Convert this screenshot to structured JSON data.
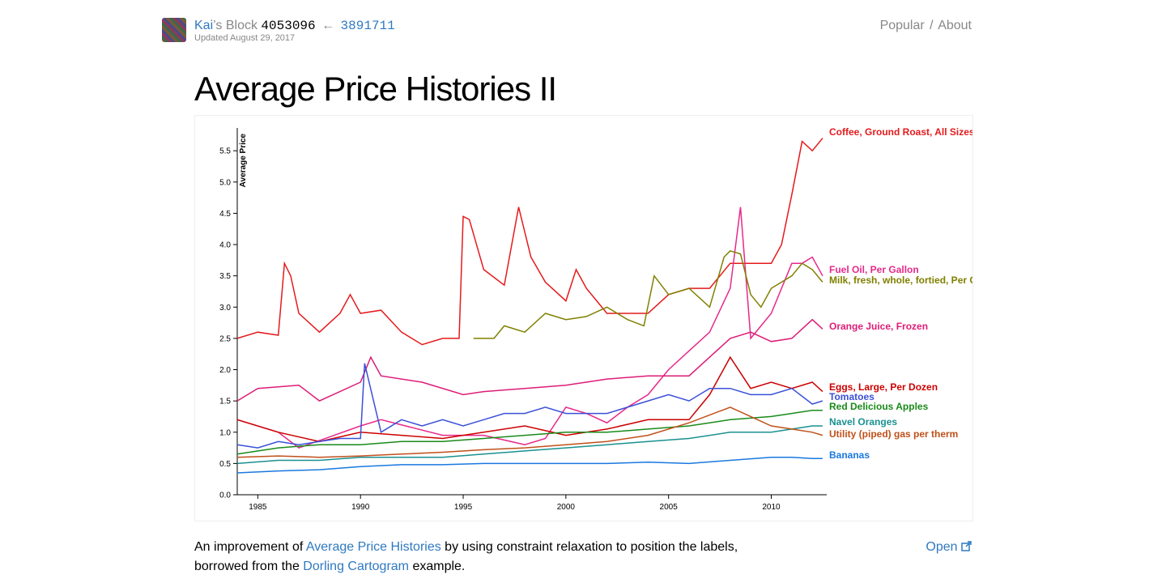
{
  "header": {
    "user": "Kai",
    "suffix": "’s Block",
    "block_id": "4053096",
    "arrow": "←",
    "parent_id": "3891711",
    "updated": "Updated August 29, 2017",
    "nav_popular": "Popular",
    "nav_sep": "/",
    "nav_about": "About"
  },
  "page_title": "Average Price Histories II",
  "description": {
    "part1": "An improvement of ",
    "link1": "Average Price Histories",
    "part2": " by using constraint relaxation to position the labels, borrowed from the ",
    "link2": "Dorling Cartogram",
    "part3": " example.",
    "open_label": "Open"
  },
  "chart_data": {
    "type": "line",
    "title": "",
    "xlabel": "",
    "ylabel": "Average Price",
    "xlim": [
      1984,
      2012.7
    ],
    "ylim": [
      0,
      5.8
    ],
    "x_ticks": [
      1985,
      1990,
      1995,
      2000,
      2005,
      2010
    ],
    "y_ticks": [
      0.0,
      0.5,
      1.0,
      1.5,
      2.0,
      2.5,
      3.0,
      3.5,
      4.0,
      4.5,
      5.0,
      5.5
    ],
    "grid": false,
    "legend": "labels at line ends (right)",
    "series": [
      {
        "name": "Coffee, Ground Roast, All Sizes",
        "color": "#e41a1c",
        "label_value": 5.7,
        "x": [
          1984,
          1985,
          1986,
          1986.3,
          1986.6,
          1987,
          1988,
          1989,
          1989.5,
          1990,
          1991,
          1992,
          1993,
          1994,
          1994.8,
          1995,
          1995.3,
          1996,
          1997,
          1997.7,
          1998.3,
          1999,
          2000,
          2000.5,
          2001,
          2002,
          2003,
          2004,
          2005,
          2006,
          2007,
          2008,
          2009,
          2010,
          2010.5,
          2011,
          2011.5,
          2012,
          2012.5
        ],
        "y": [
          2.5,
          2.6,
          2.55,
          3.7,
          3.5,
          2.9,
          2.6,
          2.9,
          3.2,
          2.9,
          2.95,
          2.6,
          2.4,
          2.5,
          2.5,
          4.45,
          4.4,
          3.6,
          3.35,
          4.6,
          3.8,
          3.4,
          3.1,
          3.6,
          3.3,
          2.9,
          2.9,
          2.9,
          3.2,
          3.3,
          3.3,
          3.7,
          3.7,
          3.7,
          4.0,
          4.8,
          5.65,
          5.5,
          5.7
        ]
      },
      {
        "name": "Fuel Oil, Per Gallon",
        "color": "#e7298a",
        "label_value": 3.5,
        "x": [
          1984,
          1986,
          1987,
          1990,
          1991,
          1994,
          1996,
          1998,
          1999,
          2000,
          2001,
          2002,
          2003,
          2004,
          2005,
          2006,
          2007,
          2008,
          2008.5,
          2009,
          2010,
          2011,
          2011.5,
          2012,
          2012.5
        ],
        "y": [
          1.2,
          1.0,
          0.75,
          1.1,
          1.2,
          0.95,
          0.95,
          0.8,
          0.9,
          1.4,
          1.3,
          1.15,
          1.4,
          1.6,
          2.0,
          2.3,
          2.6,
          3.3,
          4.6,
          2.5,
          2.9,
          3.7,
          3.7,
          3.8,
          3.5
        ]
      },
      {
        "name": "Milk, fresh, whole, fortied, Per Gallon",
        "color": "#808000",
        "label_value": 3.4,
        "x": [
          1995.5,
          1996.5,
          1997,
          1998,
          1999,
          2000,
          2001,
          2002,
          2003,
          2003.8,
          2004.3,
          2005,
          2006,
          2007,
          2007.7,
          2008,
          2008.5,
          2009,
          2009.5,
          2010,
          2011,
          2011.5,
          2012,
          2012.5
        ],
        "y": [
          2.5,
          2.5,
          2.7,
          2.6,
          2.9,
          2.8,
          2.85,
          3.0,
          2.8,
          2.7,
          3.5,
          3.2,
          3.3,
          3.0,
          3.8,
          3.9,
          3.85,
          3.2,
          3.0,
          3.3,
          3.5,
          3.7,
          3.6,
          3.4
        ]
      },
      {
        "name": "Orange Juice, Frozen",
        "color": "#dd1c77",
        "label_value": 2.65,
        "x": [
          1984,
          1985,
          1987,
          1988,
          1990,
          1990.5,
          1991,
          1993,
          1995,
          1996,
          1998,
          2000,
          2002,
          2004,
          2006,
          2007,
          2008,
          2009,
          2010,
          2011,
          2012,
          2012.5
        ],
        "y": [
          1.5,
          1.7,
          1.75,
          1.5,
          1.8,
          2.2,
          1.9,
          1.8,
          1.6,
          1.65,
          1.7,
          1.75,
          1.85,
          1.9,
          1.9,
          2.2,
          2.5,
          2.6,
          2.45,
          2.5,
          2.8,
          2.65
        ]
      },
      {
        "name": "Eggs, Large, Per Dozen",
        "color": "#cc0000",
        "label_value": 1.65,
        "x": [
          1984,
          1986,
          1988,
          1990,
          1992,
          1994,
          1996,
          1998,
          2000,
          2002,
          2004,
          2006,
          2007,
          2008,
          2009,
          2010,
          2011,
          2012,
          2012.5
        ],
        "y": [
          1.2,
          1.0,
          0.85,
          1.0,
          0.95,
          0.9,
          1.0,
          1.1,
          0.95,
          1.05,
          1.2,
          1.2,
          1.6,
          2.2,
          1.7,
          1.8,
          1.7,
          1.8,
          1.65
        ]
      },
      {
        "name": "Tomatoes",
        "color": "#3a50d8",
        "label_value": 1.5,
        "x": [
          1984,
          1985,
          1986,
          1987,
          1988,
          1989,
          1990,
          1990.2,
          1991,
          1992,
          1993,
          1994,
          1995,
          1996,
          1997,
          1998,
          1999,
          2000,
          2001,
          2002,
          2003,
          2004,
          2005,
          2006,
          2007,
          2008,
          2009,
          2010,
          2011,
          2012,
          2012.5
        ],
        "y": [
          0.8,
          0.75,
          0.85,
          0.8,
          0.85,
          0.9,
          0.9,
          2.1,
          1.0,
          1.2,
          1.1,
          1.2,
          1.1,
          1.2,
          1.3,
          1.3,
          1.4,
          1.3,
          1.3,
          1.3,
          1.4,
          1.5,
          1.6,
          1.5,
          1.7,
          1.7,
          1.6,
          1.6,
          1.7,
          1.45,
          1.5
        ]
      },
      {
        "name": "Red Delicious Apples",
        "color": "#1a8a1a",
        "label_value": 1.35,
        "x": [
          1984,
          1986,
          1988,
          1990,
          1992,
          1994,
          1996,
          1998,
          2000,
          2002,
          2004,
          2006,
          2008,
          2010,
          2011,
          2012,
          2012.5
        ],
        "y": [
          0.65,
          0.75,
          0.8,
          0.8,
          0.85,
          0.85,
          0.9,
          0.95,
          1.0,
          1.0,
          1.05,
          1.1,
          1.2,
          1.25,
          1.3,
          1.35,
          1.35
        ]
      },
      {
        "name": "Navel Oranges",
        "color": "#1a9090",
        "label_value": 1.1,
        "x": [
          1984,
          1986,
          1988,
          1990,
          1992,
          1994,
          1996,
          1998,
          2000,
          2002,
          2004,
          2006,
          2008,
          2010,
          2011,
          2012,
          2012.5
        ],
        "y": [
          0.5,
          0.55,
          0.55,
          0.6,
          0.6,
          0.6,
          0.65,
          0.7,
          0.75,
          0.8,
          0.85,
          0.9,
          1.0,
          1.0,
          1.05,
          1.1,
          1.1
        ]
      },
      {
        "name": "Utility (piped) gas per therm",
        "color": "#c0501a",
        "label_value": 0.9,
        "x": [
          1984,
          1986,
          1988,
          1990,
          1992,
          1994,
          1996,
          1998,
          2000,
          2002,
          2004,
          2006,
          2008,
          2010,
          2011,
          2012,
          2012.5
        ],
        "y": [
          0.6,
          0.62,
          0.6,
          0.62,
          0.65,
          0.68,
          0.72,
          0.75,
          0.8,
          0.85,
          0.95,
          1.15,
          1.4,
          1.1,
          1.05,
          1.0,
          0.95
        ]
      },
      {
        "name": "Bananas",
        "color": "#1a78e0",
        "label_value": 0.58,
        "x": [
          1984,
          1986,
          1988,
          1990,
          1992,
          1994,
          1996,
          1998,
          2000,
          2002,
          2004,
          2006,
          2008,
          2010,
          2011,
          2012,
          2012.5
        ],
        "y": [
          0.35,
          0.38,
          0.4,
          0.45,
          0.48,
          0.48,
          0.5,
          0.5,
          0.5,
          0.5,
          0.52,
          0.5,
          0.55,
          0.6,
          0.6,
          0.58,
          0.58
        ]
      }
    ]
  }
}
